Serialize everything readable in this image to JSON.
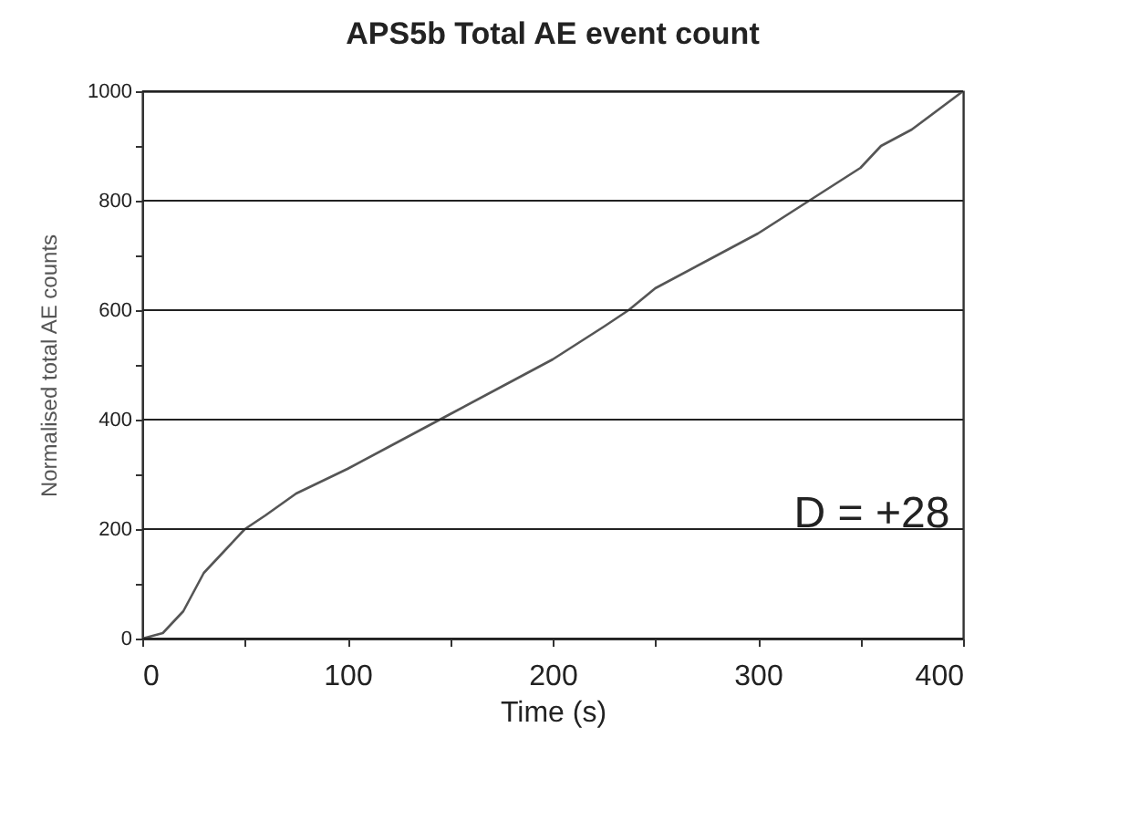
{
  "chart_data": {
    "type": "line",
    "title": "APS5b Total AE event count",
    "xlabel": "Time (s)",
    "ylabel": "Normalised total AE counts",
    "x": [
      0,
      10,
      20,
      30,
      40,
      50,
      60,
      75,
      100,
      125,
      145,
      150,
      175,
      200,
      225,
      237,
      250,
      275,
      300,
      325,
      350,
      360,
      375,
      400
    ],
    "series": [
      {
        "color": "#555555",
        "values": [
          0,
          10,
          50,
          120,
          160,
          200,
          225,
          265,
          310,
          360,
          400,
          410,
          460,
          510,
          570,
          600,
          640,
          690,
          740,
          800,
          860,
          900,
          930,
          1000
        ]
      }
    ],
    "xlim": [
      0,
      400
    ],
    "ylim": [
      0,
      1000
    ],
    "xticks": [
      0,
      {
        "value": 50,
        "label": null
      },
      100,
      {
        "value": 150,
        "label": null
      },
      200,
      {
        "value": 250,
        "label": null
      },
      300,
      {
        "value": 350,
        "label": null
      },
      400
    ],
    "yticks": [
      0,
      {
        "value": 100,
        "label": null
      },
      200,
      {
        "value": 300,
        "label": null
      },
      400,
      {
        "value": 500,
        "label": null
      },
      600,
      {
        "value": 700,
        "label": null
      },
      800,
      {
        "value": 900,
        "label": null
      },
      1000
    ],
    "grid": "y",
    "annotations": [
      "D = +28"
    ]
  }
}
